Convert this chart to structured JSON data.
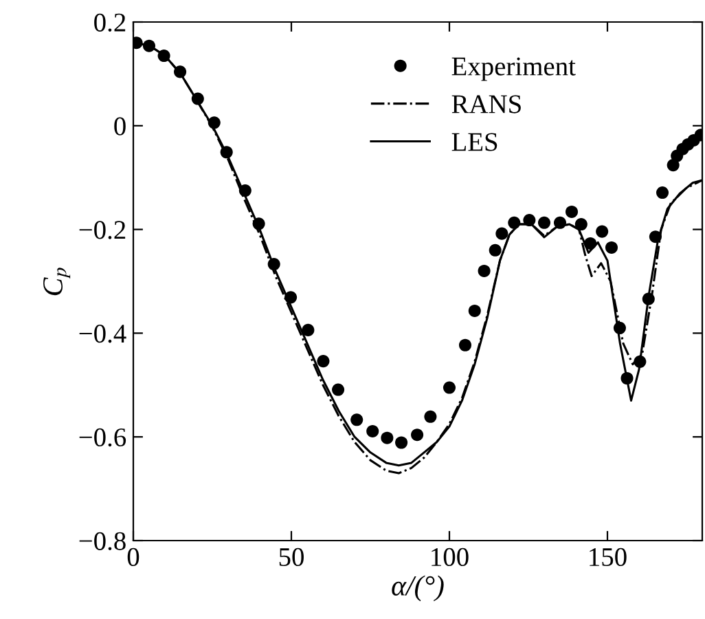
{
  "chart_data": {
    "type": "line",
    "xlabel": "α/(°)",
    "ylabel": "C$_{p}$",
    "xlim": [
      0,
      180
    ],
    "ylim": [
      -0.8,
      0.2
    ],
    "xticks": [
      0,
      50,
      100,
      150
    ],
    "yticks": [
      {
        "value": -0.8,
        "label": "−0.8"
      },
      {
        "value": -0.6,
        "label": "−0.6"
      },
      {
        "value": -0.4,
        "label": "−0.4"
      },
      {
        "value": -0.2,
        "label": "−0.2"
      },
      0,
      0.2
    ],
    "grid": false,
    "legend": "top right",
    "series": [
      {
        "name": "Experiment",
        "type": "scatter",
        "marker": "circle",
        "color": "#000000",
        "x": [
          1,
          5,
          9.7,
          14.8,
          20.4,
          25.6,
          29.5,
          35.4,
          39.7,
          44.5,
          49.8,
          55.3,
          60.1,
          64.8,
          70.7,
          75.7,
          80.3,
          84.8,
          89.8,
          94,
          100,
          105,
          108,
          111,
          114.5,
          116.6,
          120.5,
          125.3,
          130,
          135,
          138.7,
          141.7,
          144.6,
          148.3,
          151.3,
          153.9,
          156.2,
          160.3,
          163,
          165.2,
          167.4,
          170.8,
          172,
          173.8,
          175.5,
          177.3,
          179.5
        ],
        "values": [
          0.16,
          0.154,
          0.135,
          0.104,
          0.052,
          0.006,
          -0.051,
          -0.125,
          -0.189,
          -0.267,
          -0.331,
          -0.394,
          -0.454,
          -0.509,
          -0.567,
          -0.589,
          -0.602,
          -0.611,
          -0.596,
          -0.561,
          -0.505,
          -0.423,
          -0.357,
          -0.28,
          -0.24,
          -0.208,
          -0.187,
          -0.182,
          -0.187,
          -0.187,
          -0.166,
          -0.19,
          -0.227,
          -0.204,
          -0.235,
          -0.39,
          -0.487,
          -0.455,
          -0.334,
          -0.214,
          -0.129,
          -0.076,
          -0.058,
          -0.045,
          -0.036,
          -0.028,
          -0.018
        ]
      },
      {
        "name": "RANS",
        "line_style": "dashdot",
        "color": "#000000",
        "x": [
          0,
          5,
          10,
          15,
          20,
          25,
          30,
          35,
          40,
          45,
          50,
          55,
          60,
          65,
          70,
          75,
          80,
          84,
          88,
          92,
          96,
          100,
          104,
          108,
          112,
          116,
          119,
          122,
          126,
          130,
          134,
          138,
          141,
          143,
          145,
          148,
          151,
          155,
          158,
          161,
          164,
          167,
          170,
          175,
          180
        ],
        "values": [
          0.16,
          0.155,
          0.135,
          0.1,
          0.05,
          -0.002,
          -0.065,
          -0.14,
          -0.21,
          -0.29,
          -0.36,
          -0.43,
          -0.5,
          -0.56,
          -0.61,
          -0.645,
          -0.665,
          -0.67,
          -0.66,
          -0.64,
          -0.61,
          -0.575,
          -0.525,
          -0.455,
          -0.365,
          -0.26,
          -0.21,
          -0.19,
          -0.19,
          -0.212,
          -0.195,
          -0.19,
          -0.2,
          -0.25,
          -0.29,
          -0.265,
          -0.3,
          -0.42,
          -0.46,
          -0.44,
          -0.33,
          -0.2,
          -0.15,
          -0.12,
          -0.105
        ]
      },
      {
        "name": "LES",
        "line_style": "solid",
        "color": "#000000",
        "x": [
          0,
          5,
          10,
          15,
          20,
          25,
          30,
          35,
          40,
          45,
          50,
          55,
          60,
          65,
          70,
          75,
          80,
          84,
          88,
          92,
          96,
          100,
          104,
          108,
          112,
          116,
          119,
          122,
          126,
          130,
          134,
          138,
          141,
          144,
          147,
          150,
          154,
          157.5,
          160,
          163,
          166,
          169,
          173,
          177,
          180
        ],
        "values": [
          0.16,
          0.155,
          0.135,
          0.1,
          0.05,
          0.0,
          -0.06,
          -0.13,
          -0.2,
          -0.28,
          -0.35,
          -0.42,
          -0.49,
          -0.55,
          -0.6,
          -0.63,
          -0.65,
          -0.655,
          -0.65,
          -0.63,
          -0.61,
          -0.58,
          -0.53,
          -0.46,
          -0.37,
          -0.26,
          -0.21,
          -0.19,
          -0.19,
          -0.215,
          -0.195,
          -0.19,
          -0.2,
          -0.245,
          -0.225,
          -0.26,
          -0.42,
          -0.53,
          -0.47,
          -0.33,
          -0.22,
          -0.16,
          -0.13,
          -0.11,
          -0.105
        ]
      }
    ]
  }
}
